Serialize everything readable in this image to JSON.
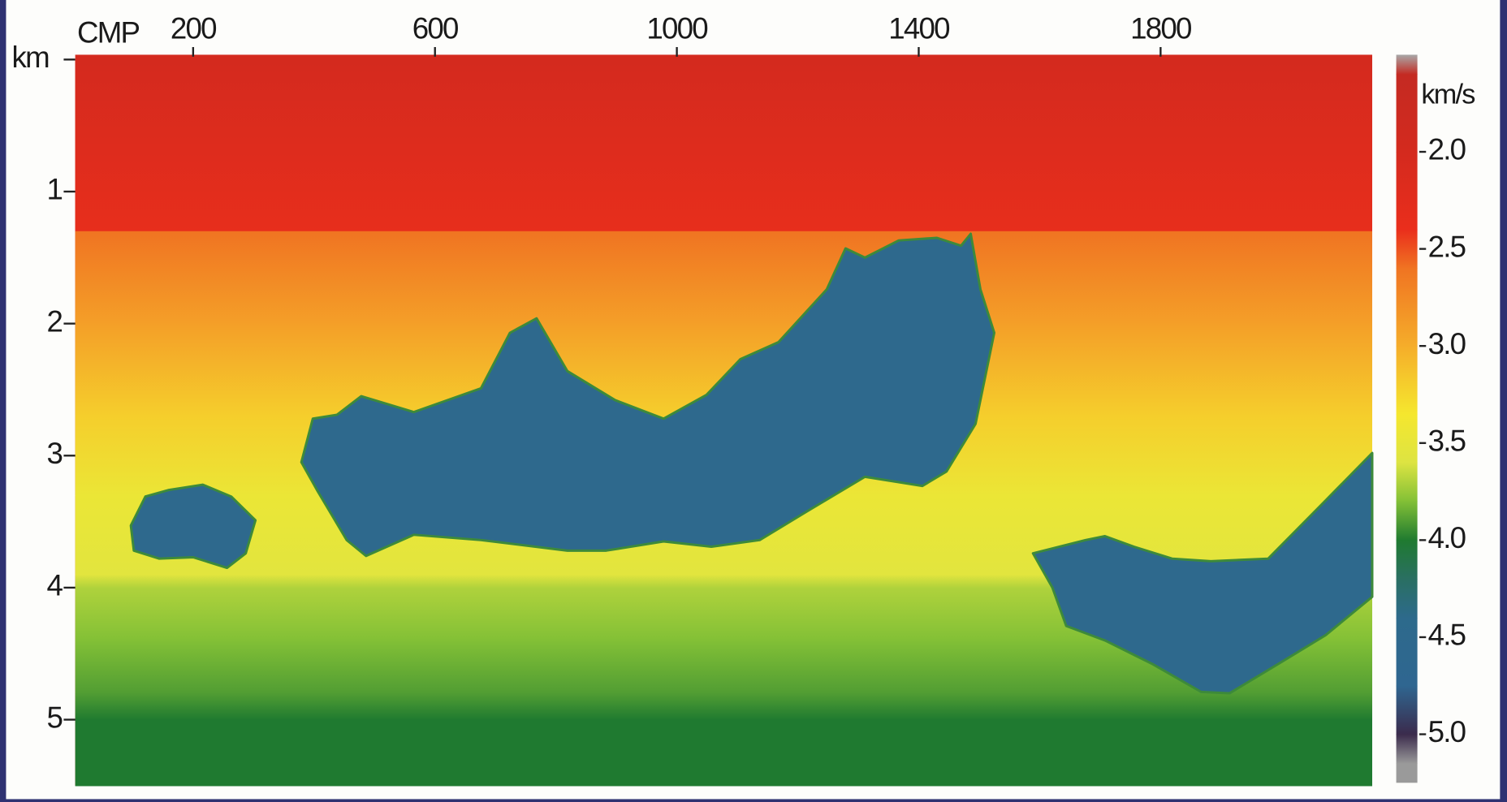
{
  "chart_data": {
    "type": "velocity-section",
    "x_label": "CMP",
    "y_label": "km",
    "xlim": [
      5,
      2150
    ],
    "xticks": [
      200,
      600,
      1000,
      1400,
      1800
    ],
    "ylim": [
      0,
      5.5
    ],
    "yticks": [
      1,
      2,
      3,
      4,
      5
    ],
    "colormap": [
      {
        "value": 1.5,
        "color": "#a8a8a8"
      },
      {
        "value": 1.6,
        "color": "#c42a22"
      },
      {
        "value": 2.0,
        "color": "#d42a1e"
      },
      {
        "value": 2.4,
        "color": "#ea2e1c"
      },
      {
        "value": 2.6,
        "color": "#f07422"
      },
      {
        "value": 3.0,
        "color": "#f5ad2a"
      },
      {
        "value": 3.35,
        "color": "#f5e72e"
      },
      {
        "value": 3.6,
        "color": "#dde442"
      },
      {
        "value": 3.8,
        "color": "#82c036"
      },
      {
        "value": 4.0,
        "color": "#1f7a30"
      },
      {
        "value": 4.2,
        "color": "#2a6f62"
      },
      {
        "value": 4.4,
        "color": "#2d6a8c"
      },
      {
        "value": 4.75,
        "color": "#2f6690"
      },
      {
        "value": 5.0,
        "color": "#3b2b4c"
      },
      {
        "value": 5.15,
        "color": "#9a9a9a"
      }
    ],
    "background": {
      "depth": [
        0,
        1.3,
        1.3,
        2.0,
        2.7,
        3.3,
        3.9,
        4.0,
        4.4,
        4.8,
        5.0,
        5.5
      ],
      "velocity": [
        2.0,
        2.35,
        2.6,
        2.9,
        3.2,
        3.45,
        3.55,
        3.7,
        3.8,
        3.9,
        4.0,
        4.0
      ]
    },
    "bodies": [
      {
        "velocity": 4.5,
        "cmp": [
          97,
          121,
          160,
          216,
          263,
          303,
          287,
          256,
          200,
          144,
          102
        ],
        "depth": [
          3.53,
          3.31,
          3.26,
          3.22,
          3.31,
          3.49,
          3.74,
          3.85,
          3.77,
          3.78,
          3.72
        ]
      },
      {
        "velocity": 4.5,
        "cmp": [
          379,
          398,
          438,
          478,
          565,
          676,
          724,
          768,
          819,
          898,
          978,
          1049,
          1105,
          1168,
          1248,
          1279,
          1311,
          1367,
          1430,
          1470,
          1486,
          1502,
          1525,
          1494,
          1446,
          1406,
          1311,
          1216,
          1137,
          1057,
          978,
          883,
          819,
          676,
          565,
          486,
          454,
          406
        ],
        "depth": [
          3.05,
          2.72,
          2.69,
          2.55,
          2.67,
          2.49,
          2.07,
          1.96,
          2.36,
          2.58,
          2.72,
          2.54,
          2.27,
          2.14,
          1.74,
          1.43,
          1.5,
          1.37,
          1.35,
          1.41,
          1.32,
          1.74,
          2.07,
          2.76,
          3.12,
          3.23,
          3.16,
          3.42,
          3.64,
          3.69,
          3.65,
          3.72,
          3.72,
          3.64,
          3.6,
          3.76,
          3.64,
          3.27
        ]
      },
      {
        "velocity": 4.5,
        "cmp": [
          1589,
          1676,
          1708,
          1756,
          1819,
          1883,
          1978,
          2073,
          2150,
          2150,
          2073,
          1994,
          1914,
          1867,
          1787,
          1708,
          1644,
          1621
        ],
        "depth": [
          3.74,
          3.64,
          3.61,
          3.69,
          3.78,
          3.8,
          3.78,
          3.34,
          2.98,
          4.07,
          4.36,
          4.58,
          4.8,
          4.79,
          4.58,
          4.4,
          4.29,
          4.0
        ]
      }
    ],
    "colorbar": {
      "label": "km/s",
      "lim": [
        1.5,
        5.25
      ],
      "ticks": [
        {
          "value": 2,
          "label": "2.0"
        },
        {
          "value": 2.5,
          "label": "2.5"
        },
        {
          "value": 3,
          "label": "3.0"
        },
        {
          "value": 3.5,
          "label": "3.5"
        },
        {
          "value": 4,
          "label": "4.0"
        },
        {
          "value": 4.5,
          "label": "4.5"
        },
        {
          "value": 5,
          "label": "5.0"
        }
      ]
    }
  }
}
